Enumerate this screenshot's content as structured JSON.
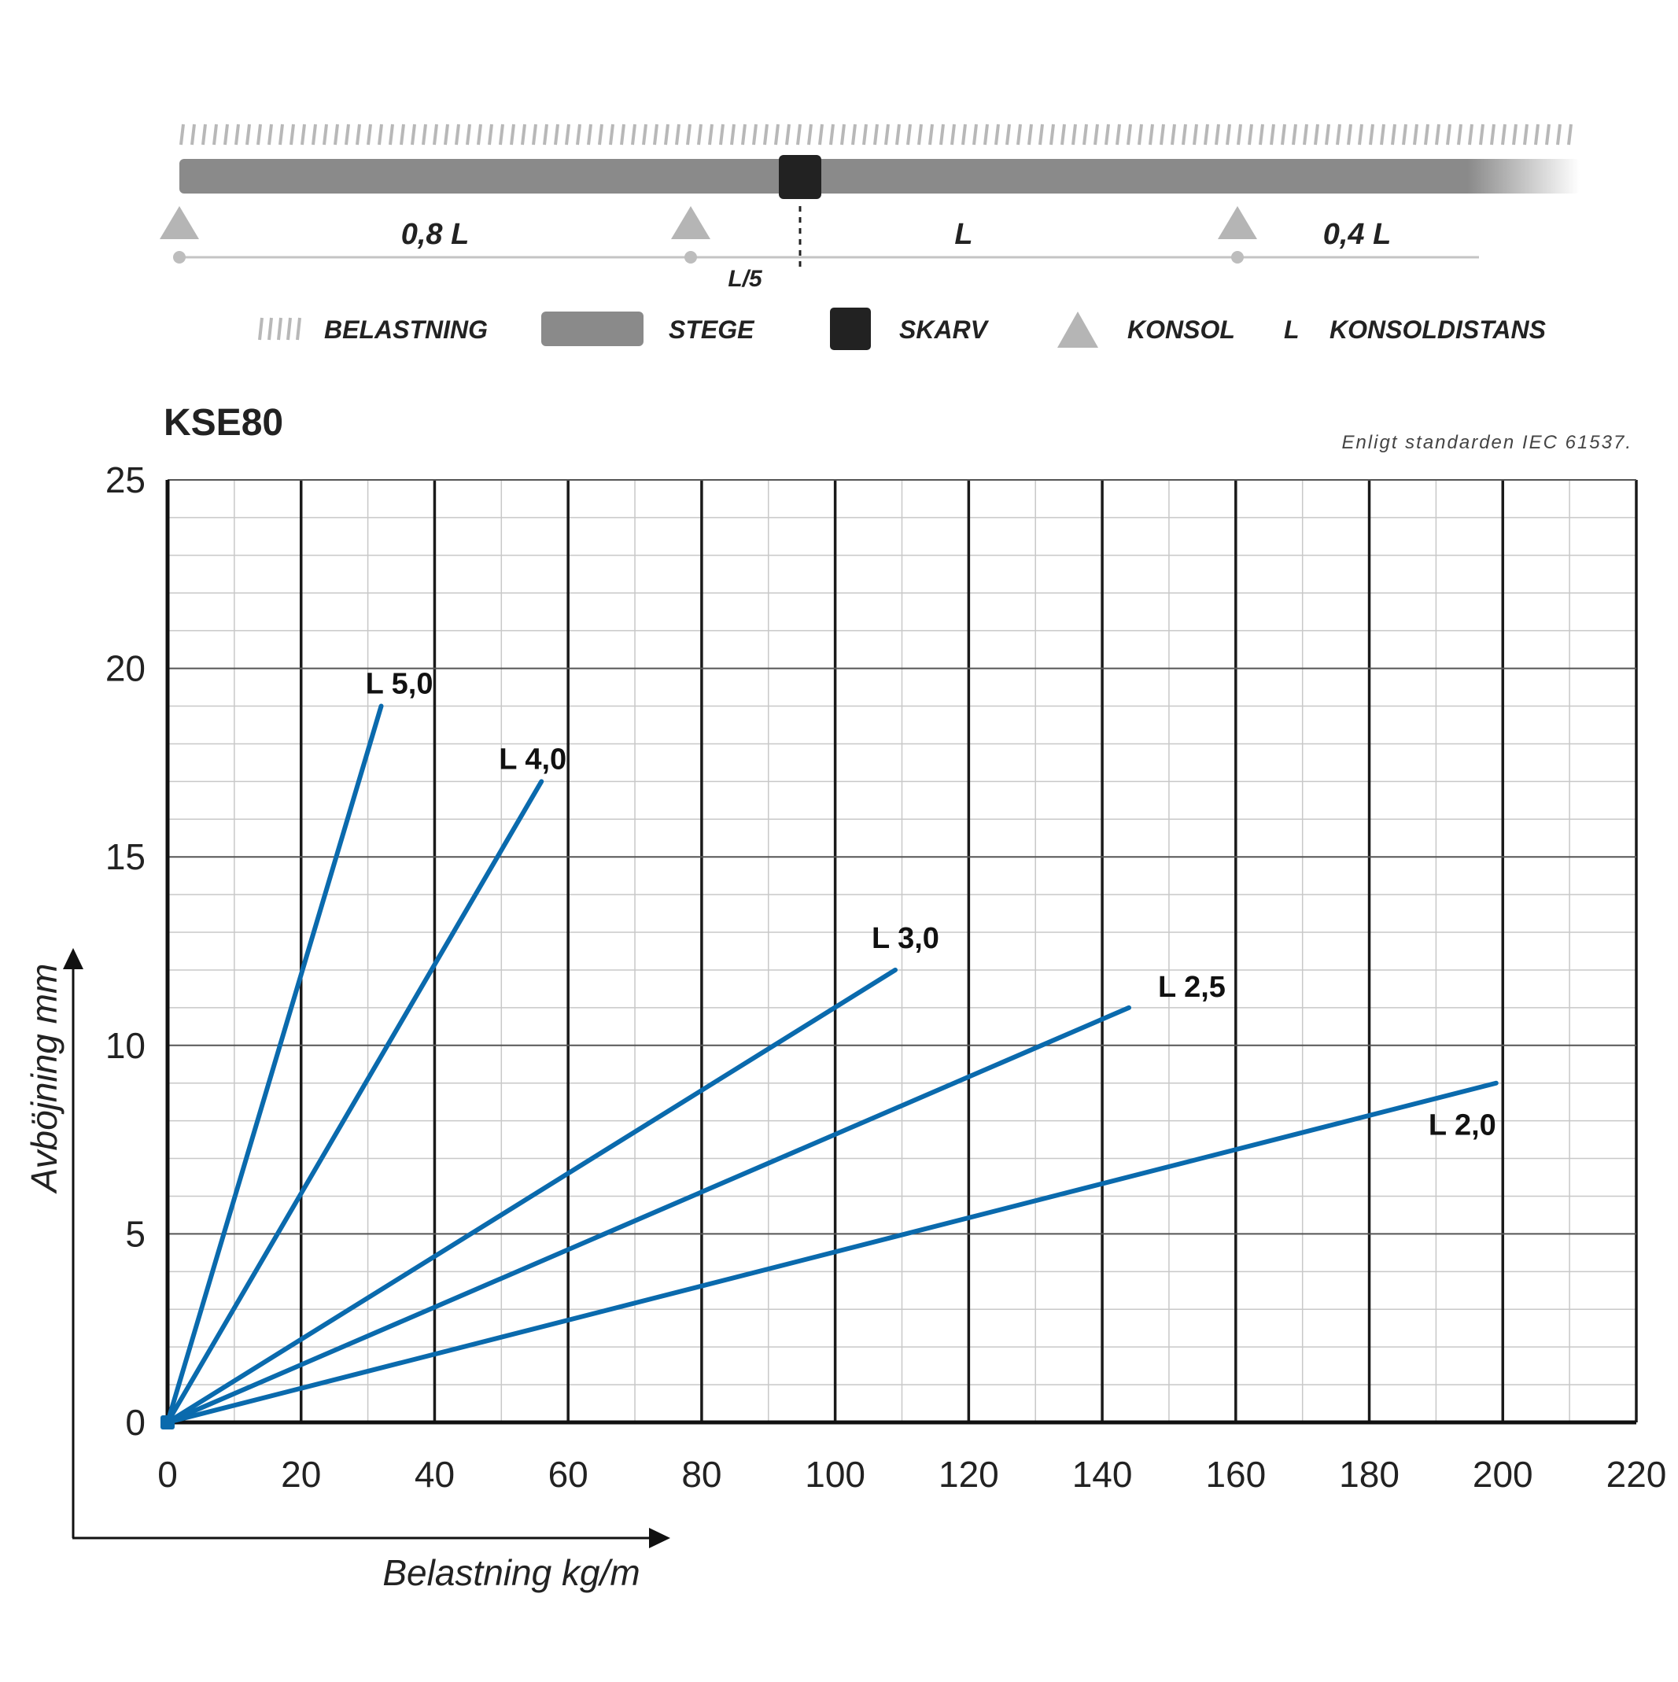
{
  "header_diagram": {
    "span_labels": [
      "0,8 L",
      "L",
      "0,4 L"
    ],
    "joint_offset_label": "L/5",
    "legend": [
      {
        "icon": "load-hatch-icon",
        "label": "BELASTNING"
      },
      {
        "icon": "ladder-bar-icon",
        "label": "STEGE"
      },
      {
        "icon": "joint-square-icon",
        "label": "SKARV"
      },
      {
        "icon": "bracket-triangle-icon",
        "label": "KONSOL"
      },
      {
        "icon": "letter-L-icon",
        "symbol": "L",
        "label": "KONSOLDISTANS"
      }
    ],
    "colors": {
      "load": "#b8b8b8",
      "ladder": "#8a8a8a",
      "joint": "#222222",
      "bracket": "#b5b5b5"
    }
  },
  "chart_data": {
    "type": "line",
    "title": "KSE80",
    "subtitle": "Enligt standarden IEC 61537.",
    "xlabel": "Belastning kg/m",
    "ylabel": "Avböjning mm",
    "xlim": [
      0,
      220
    ],
    "ylim": [
      0,
      25
    ],
    "x_ticks": [
      0,
      20,
      40,
      60,
      80,
      100,
      120,
      140,
      160,
      180,
      200,
      220
    ],
    "y_ticks": [
      0,
      5,
      10,
      15,
      20,
      25
    ],
    "grid": true,
    "line_color": "#0a6aad",
    "series": [
      {
        "name": "L 5,0",
        "x": [
          0,
          32
        ],
        "y": [
          0,
          19
        ]
      },
      {
        "name": "L 4,0",
        "x": [
          0,
          56
        ],
        "y": [
          0,
          17
        ]
      },
      {
        "name": "L 3,0",
        "x": [
          0,
          109
        ],
        "y": [
          0,
          12
        ]
      },
      {
        "name": "L 2,5",
        "x": [
          0,
          144
        ],
        "y": [
          0,
          11
        ]
      },
      {
        "name": "L 2,0",
        "x": [
          0,
          199
        ],
        "y": [
          0,
          9
        ]
      }
    ]
  }
}
